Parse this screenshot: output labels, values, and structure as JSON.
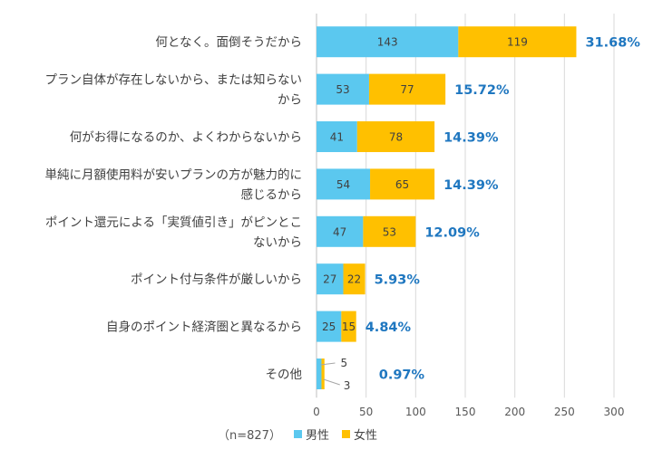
{
  "chart_data": {
    "type": "bar",
    "orientation": "horizontal",
    "stacked": true,
    "categories": [
      [
        "何となく。面倒そうだから"
      ],
      [
        "プラン自体が存在しないから、または知らない",
        "から"
      ],
      [
        "何がお得になるのか、よくわからないから"
      ],
      [
        "単純に月額使用料が安いプランの方が魅力的に",
        "感じるから"
      ],
      [
        "ポイント還元による「実質値引き」がピンとこ",
        "ないから"
      ],
      [
        "ポイント付与条件が厳しいから"
      ],
      [
        "自身のポイント経済圏と異なるから"
      ],
      [
        "その他"
      ]
    ],
    "series": [
      {
        "name": "男性",
        "color": "#5BC8EF",
        "values": [
          143,
          53,
          41,
          54,
          47,
          27,
          25,
          5
        ]
      },
      {
        "name": "女性",
        "color": "#FFC000",
        "values": [
          119,
          77,
          78,
          65,
          53,
          22,
          15,
          3
        ]
      }
    ],
    "percent_labels": [
      "31.68%",
      "15.72%",
      "14.39%",
      "14.39%",
      "12.09%",
      "5.93%",
      "4.84%",
      "0.97%"
    ],
    "percent_color": "#1F77C0",
    "xlim": [
      0,
      300
    ],
    "xticks": [
      0,
      50,
      100,
      150,
      200,
      250,
      300
    ],
    "grid": true,
    "note": "（n=827）"
  }
}
